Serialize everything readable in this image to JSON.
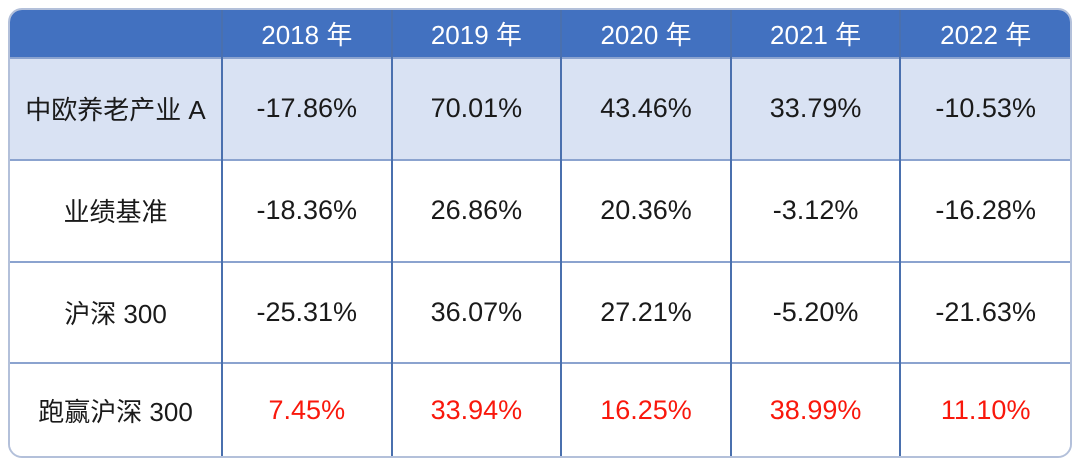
{
  "chart_data": {
    "type": "table",
    "title": "",
    "columns": [
      "",
      "2018 年",
      "2019 年",
      "2020 年",
      "2021 年",
      "2022 年"
    ],
    "rows": [
      {
        "label": "中欧养老产业 A",
        "values": [
          "-17.86%",
          "70.01%",
          "43.46%",
          "33.79%",
          "-10.53%"
        ],
        "highlight": false
      },
      {
        "label": "业绩基准",
        "values": [
          "-18.36%",
          "26.86%",
          "20.36%",
          "-3.12%",
          "-16.28%"
        ],
        "highlight": false
      },
      {
        "label": "沪深 300",
        "values": [
          "-25.31%",
          "36.07%",
          "27.21%",
          "-5.20%",
          "-21.63%"
        ],
        "highlight": false
      },
      {
        "label": "跑赢沪深 300",
        "values": [
          "7.45%",
          "33.94%",
          "16.25%",
          "38.99%",
          "11.10%"
        ],
        "highlight": true
      }
    ],
    "layout_hints": {
      "header_style": "blue band, white text",
      "banded_first_row": true,
      "highlight_row_text": "red"
    }
  },
  "colors": {
    "header_bg": "#4271C0",
    "header_text": "#FFFFFF",
    "first_row_bg": "#D9E2F3",
    "grid_vertical": "#4A70AE",
    "grid_horizontal": "#8BA3CF",
    "outer_border": "#B3C0DA",
    "highlight_red": "#F9180C",
    "body_text": "#1A1A1A"
  }
}
